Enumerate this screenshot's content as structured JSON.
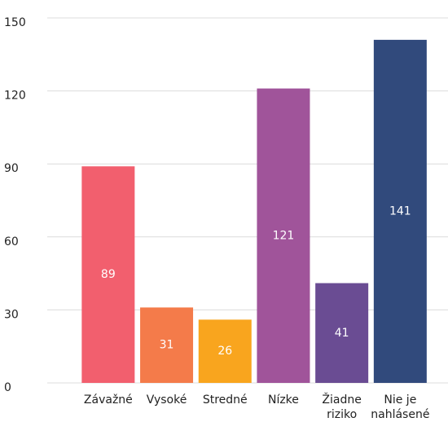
{
  "chart_data": {
    "type": "bar",
    "categories": [
      "Závažné",
      "Vysoké",
      "Stredné",
      "Nízke",
      "Žiadne riziko",
      "Nie je nahlásené"
    ],
    "values": [
      89,
      31,
      26,
      121,
      41,
      141
    ],
    "colors": [
      "#f25f6e",
      "#f47b4a",
      "#f9a51e",
      "#a0549a",
      "#6a4c93",
      "#314a7c"
    ],
    "ylim": [
      0,
      150
    ],
    "yticks": [
      0,
      30,
      60,
      90,
      120,
      150
    ],
    "grid": true
  }
}
